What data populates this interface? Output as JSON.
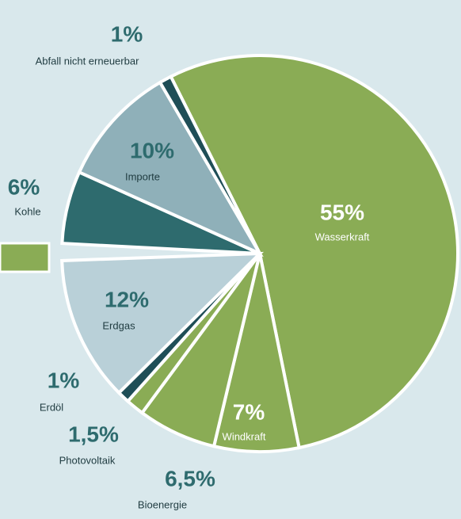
{
  "chart_data": {
    "type": "pie",
    "categories": [
      "Wasserkraft",
      "Windkraft",
      "Bioenergie",
      "Photovoltaik",
      "Erdöl",
      "Erdgas",
      "Kohle",
      "Importe",
      "Abfall nicht erneuerbar"
    ],
    "values": [
      55,
      7,
      6.5,
      1.5,
      1,
      12,
      6,
      10,
      1
    ],
    "value_labels": [
      "55%",
      "7%",
      "6,5%",
      "1,5%",
      "1%",
      "12%",
      "6%",
      "10%",
      "1%"
    ],
    "colors": [
      "#8aac55",
      "#8aac55",
      "#8aac55",
      "#8aac55",
      "#1f4e57",
      "#b9d0d8",
      "#2e6b6e",
      "#8fb0b9",
      "#1f4e57"
    ]
  }
}
